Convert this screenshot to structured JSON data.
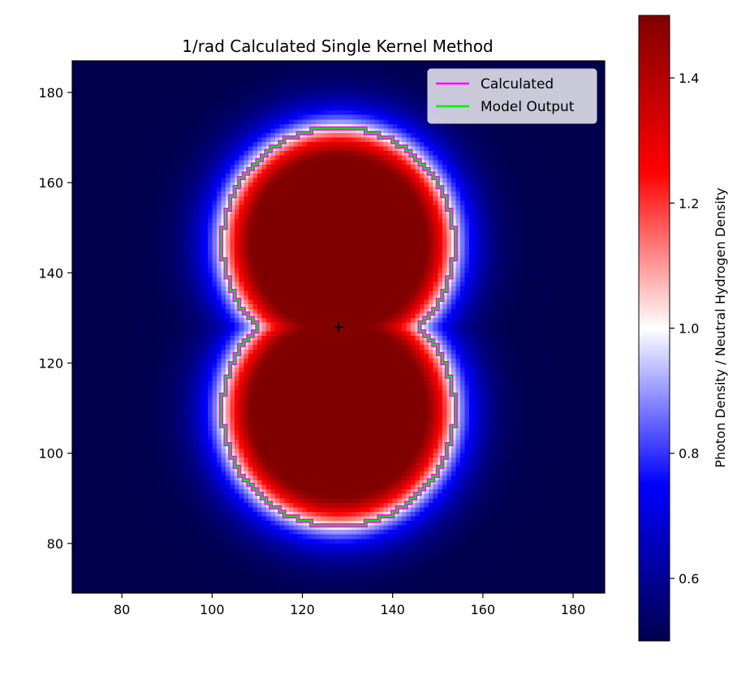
{
  "chart_data": {
    "type": "heatmap",
    "title": "1/rad Calculated Single Kernel Method",
    "xlabel": "",
    "ylabel": "",
    "xlim": [
      69,
      187
    ],
    "ylim": [
      69,
      187
    ],
    "xticks": [
      80,
      100,
      120,
      140,
      160,
      180
    ],
    "yticks": [
      80,
      100,
      120,
      140,
      160,
      180
    ],
    "colormap": [
      "#00004d",
      "#0000ff",
      "#ffffff",
      "#ff0000",
      "#800000"
    ],
    "colorbar": {
      "label": "Photon Density / Neutral Hydrogen Density",
      "range": [
        0.5,
        1.5
      ],
      "ticks": [
        0.6,
        0.8,
        1.0,
        1.2,
        1.4
      ],
      "tick_labels": [
        "0.6",
        "0.8",
        "1.0",
        "1.2",
        "1.4"
      ]
    },
    "source_marker": {
      "x": 128,
      "y": 128,
      "symbol": "+"
    },
    "legend": {
      "placement": "upper-right",
      "entries": [
        {
          "label": "Calculated",
          "color": "#ff00ff"
        },
        {
          "label": "Model Output",
          "color": "#00ee00"
        }
      ]
    },
    "field": {
      "description_free": true,
      "lobes": [
        {
          "cx": 128,
          "cy": 146.5,
          "r": 19,
          "max": 1.5
        },
        {
          "cx": 128,
          "cy": 109.5,
          "r": 19,
          "max": 1.5
        }
      ],
      "falloff_scale": 8.5,
      "background": 0.5
    },
    "contour": {
      "level": 1.0,
      "series": [
        {
          "name": "Calculated",
          "color": "#ff00ff"
        },
        {
          "name": "Model Output",
          "color": "#00ee00"
        }
      ]
    }
  }
}
